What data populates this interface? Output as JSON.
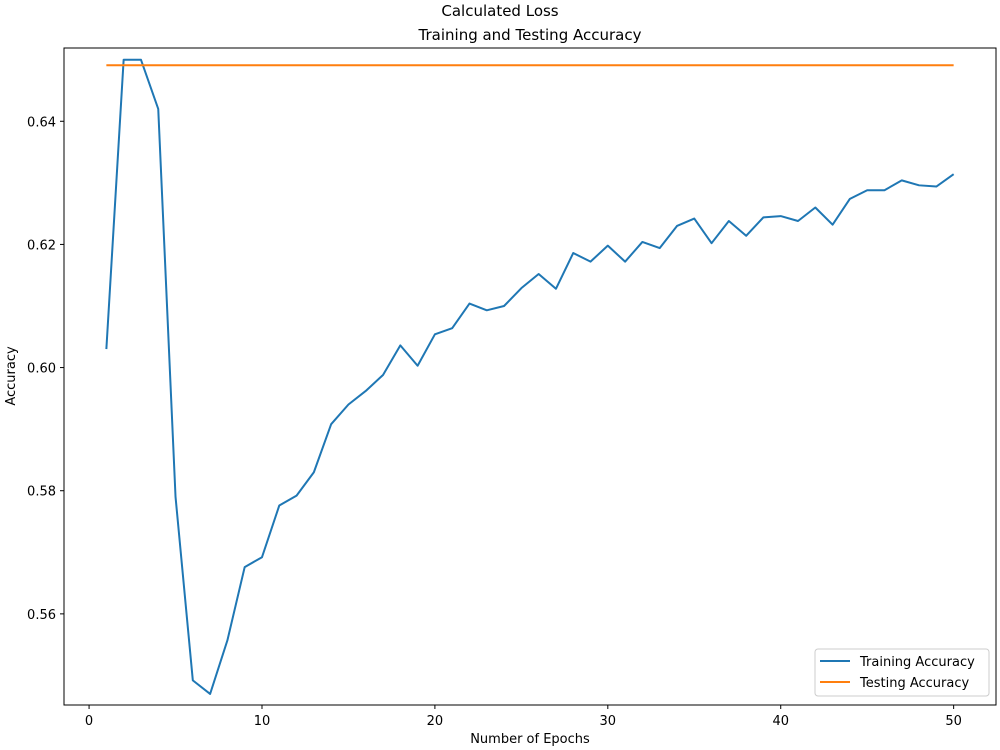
{
  "figure": {
    "suptitle": "Calculated Loss"
  },
  "chart_data": {
    "type": "line",
    "title": "Training and Testing Accuracy",
    "xlabel": "Number of Epochs",
    "ylabel": "Accuracy",
    "xlim": [
      -1.45,
      52.45
    ],
    "ylim": [
      0.5452,
      0.6519
    ],
    "xticks": [
      0,
      10,
      20,
      30,
      40,
      50
    ],
    "yticks": [
      0.56,
      0.58,
      0.6,
      0.62,
      0.64
    ],
    "ytick_labels": [
      "0.56",
      "0.58",
      "0.60",
      "0.62",
      "0.64"
    ],
    "grid": false,
    "legend_location": "lower right",
    "x": [
      1,
      2,
      3,
      4,
      5,
      6,
      7,
      8,
      9,
      10,
      11,
      12,
      13,
      14,
      15,
      16,
      17,
      18,
      19,
      20,
      21,
      22,
      23,
      24,
      25,
      26,
      27,
      28,
      29,
      30,
      31,
      32,
      33,
      34,
      35,
      36,
      37,
      38,
      39,
      40,
      41,
      42,
      43,
      44,
      45,
      46,
      47,
      48,
      49,
      50
    ],
    "series": [
      {
        "name": "Training Accuracy",
        "color": "#1f77b4",
        "values": [
          0.603,
          0.65,
          0.65,
          0.642,
          0.579,
          0.5492,
          0.547,
          0.5557,
          0.5676,
          0.5692,
          0.5776,
          0.5792,
          0.583,
          0.5908,
          0.594,
          0.5962,
          0.5988,
          0.6036,
          0.6003,
          0.6054,
          0.6064,
          0.6104,
          0.6093,
          0.61,
          0.6129,
          0.6152,
          0.6128,
          0.6186,
          0.6172,
          0.6198,
          0.6172,
          0.6204,
          0.6194,
          0.623,
          0.6242,
          0.6202,
          0.6238,
          0.6214,
          0.6244,
          0.6246,
          0.6238,
          0.626,
          0.6232,
          0.6274,
          0.6288,
          0.6288,
          0.6304,
          0.6296,
          0.6294,
          0.6314
        ]
      },
      {
        "name": "Testing Accuracy",
        "color": "#ff7f0e",
        "values": [
          0.6491,
          0.6491,
          0.6491,
          0.6491,
          0.6491,
          0.6491,
          0.6491,
          0.6491,
          0.6491,
          0.6491,
          0.6491,
          0.6491,
          0.6491,
          0.6491,
          0.6491,
          0.6491,
          0.6491,
          0.6491,
          0.6491,
          0.6491,
          0.6491,
          0.6491,
          0.6491,
          0.6491,
          0.6491,
          0.6491,
          0.6491,
          0.6491,
          0.6491,
          0.6491,
          0.6491,
          0.6491,
          0.6491,
          0.6491,
          0.6491,
          0.6491,
          0.6491,
          0.6491,
          0.6491,
          0.6491,
          0.6491,
          0.6491,
          0.6491,
          0.6491,
          0.6491,
          0.6491,
          0.6491,
          0.6491,
          0.6491,
          0.6491
        ]
      }
    ]
  }
}
